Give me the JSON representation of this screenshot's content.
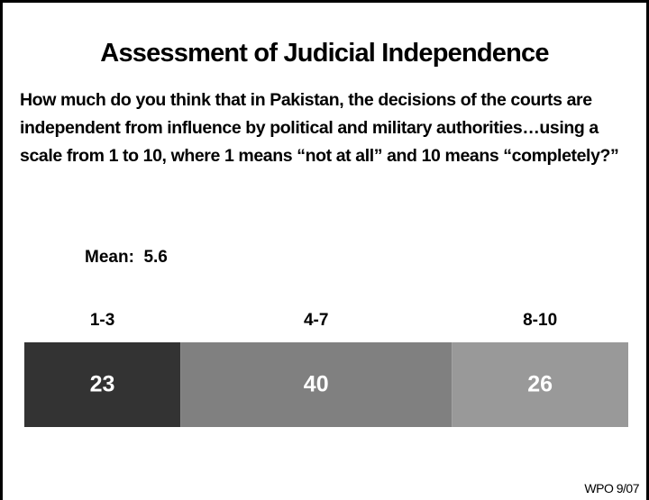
{
  "chart_data": {
    "type": "stacked-bar",
    "orientation": "horizontal",
    "title": "Assessment of Judicial Independence",
    "subtitle": "How much do you think that in Pakistan, the decisions of the courts are independent from influence by political and military authorities…using a scale from 1 to 10, where 1 means “not at all” and 10 means “completely?”",
    "annotation": "Mean:  5.6",
    "note": "WPO 9/07",
    "categories": [
      null
    ],
    "series": [
      {
        "name": "1-3",
        "color": "#333333",
        "values": [
          23
        ]
      },
      {
        "name": "4-7",
        "color": "#808080",
        "values": [
          40
        ]
      },
      {
        "name": "8-10",
        "color": "#999999",
        "values": [
          26
        ]
      }
    ]
  }
}
